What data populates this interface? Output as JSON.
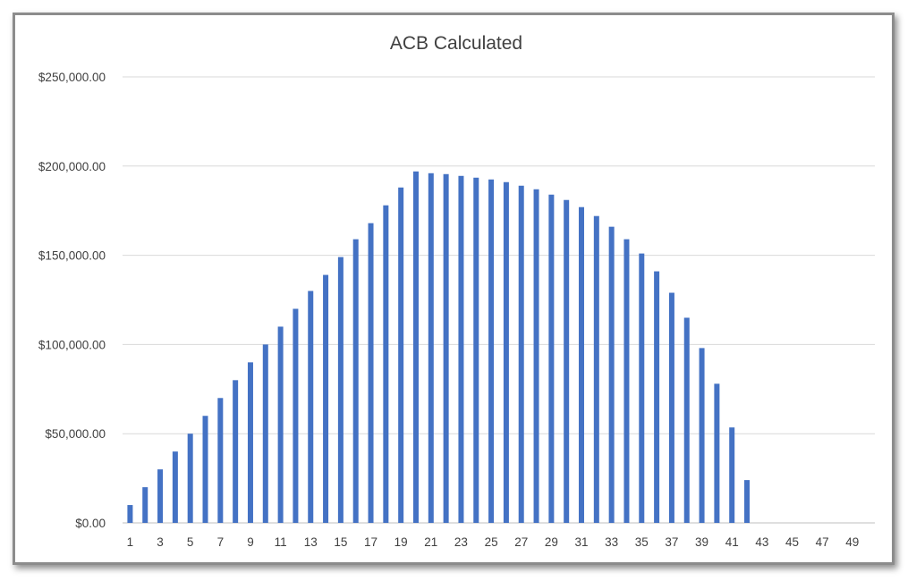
{
  "chart_data": {
    "type": "bar",
    "title": "ACB Calculated",
    "xlabel": "",
    "ylabel": "",
    "ylim": [
      0,
      250000
    ],
    "y_ticks": [
      "$0.00",
      "$50,000.00",
      "$100,000.00",
      "$150,000.00",
      "$200,000.00",
      "$250,000.00"
    ],
    "x_tick_labels": [
      "1",
      "3",
      "5",
      "7",
      "9",
      "11",
      "13",
      "15",
      "17",
      "19",
      "21",
      "23",
      "25",
      "27",
      "29",
      "31",
      "33",
      "35",
      "37",
      "39",
      "41",
      "43",
      "45",
      "47",
      "49"
    ],
    "categories": [
      1,
      2,
      3,
      4,
      5,
      6,
      7,
      8,
      9,
      10,
      11,
      12,
      13,
      14,
      15,
      16,
      17,
      18,
      19,
      20,
      21,
      22,
      23,
      24,
      25,
      26,
      27,
      28,
      29,
      30,
      31,
      32,
      33,
      34,
      35,
      36,
      37,
      38,
      39,
      40,
      41,
      42,
      43,
      44,
      45,
      46,
      47,
      48,
      49,
      50
    ],
    "values": [
      10000,
      20000,
      30000,
      40000,
      50000,
      60000,
      70000,
      80000,
      90000,
      100000,
      110000,
      120000,
      130000,
      139000,
      149000,
      159000,
      168000,
      178000,
      188000,
      197000,
      196000,
      195500,
      194500,
      193500,
      192500,
      191000,
      189000,
      187000,
      184000,
      181000,
      177000,
      172000,
      166000,
      159000,
      151000,
      141000,
      129000,
      115000,
      98000,
      78000,
      53500,
      24000,
      0,
      0,
      0,
      0,
      0,
      0,
      0,
      0
    ],
    "bar_color": "#4472c4",
    "gridlines": true,
    "legend": "none"
  }
}
